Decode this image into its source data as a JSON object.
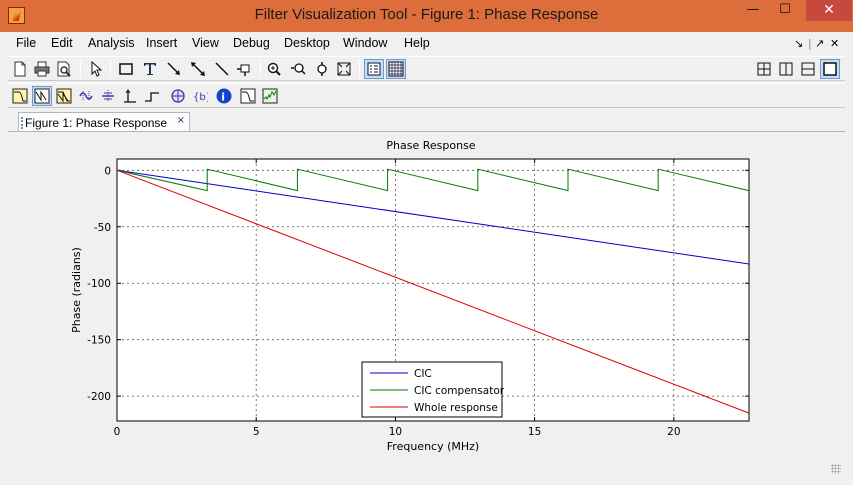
{
  "window": {
    "title": "Filter Visualization Tool - Figure 1: Phase Response",
    "min_glyph": "—",
    "max_glyph": "☐",
    "close_glyph": "✕"
  },
  "menu": {
    "items": [
      "File",
      "Edit",
      "Analysis",
      "Insert",
      "View",
      "Debug",
      "Desktop",
      "Window",
      "Help"
    ],
    "dock_controls": [
      "↘",
      "|",
      "↗",
      "✕"
    ]
  },
  "toolbar1": {
    "icons": [
      "new-file-icon",
      "print-icon",
      "print-preview-icon",
      "select-pointer-icon",
      "rectangle-icon",
      "text-icon",
      "arrow-icon",
      "double-arrow-icon",
      "line-icon",
      "pin-icon",
      "zoom-in-icon",
      "zoom-x-icon",
      "zoom-y-icon",
      "full-view-icon",
      "legend-toggle-icon",
      "grid-toggle-icon",
      "tile-icon",
      "split-vertical-icon",
      "split-horizontal-icon",
      "maximize-view-icon"
    ]
  },
  "toolbar2": {
    "icons": [
      "magnitude-response-icon",
      "phase-response-icon",
      "magnitude-phase-icon",
      "group-delay-icon",
      "phase-delay-icon",
      "impulse-response-icon",
      "step-response-icon",
      "pole-zero-icon",
      "filter-coefficients-icon",
      "filter-info-icon",
      "magnitude-estimate-icon",
      "round-off-noise-icon"
    ]
  },
  "tab": {
    "label": "Figure 1: Phase Response",
    "close": "×"
  },
  "chart_data": {
    "type": "line",
    "title": "Phase Response",
    "xlabel": "Frequency (MHz)",
    "ylabel": "Phase (radians)",
    "xlim": [
      0,
      22.7
    ],
    "ylim": [
      -222,
      10
    ],
    "xticks": [
      0,
      5,
      10,
      15,
      20
    ],
    "yticks": [
      0,
      -50,
      -100,
      -150,
      -200
    ],
    "grid": true,
    "legend_position": "bottom-center",
    "series": [
      {
        "name": "CIC",
        "color": "#0000cc",
        "x": [
          0,
          22.7
        ],
        "y": [
          0,
          -83
        ]
      },
      {
        "name": "CIC compensator",
        "color": "#007a00",
        "period_mhz": 3.24,
        "x": [
          0,
          3.24,
          3.24,
          6.48,
          6.48,
          9.72,
          9.72,
          12.96,
          12.96,
          16.2,
          16.2,
          19.44,
          19.44,
          22.7
        ],
        "y": [
          0,
          -18,
          1,
          -18,
          1,
          -18,
          1,
          -18,
          1,
          -18,
          1,
          -18,
          1,
          -18
        ]
      },
      {
        "name": "Whole response",
        "color": "#dd0000",
        "x": [
          0,
          22.7
        ],
        "y": [
          0,
          -215
        ]
      }
    ]
  }
}
